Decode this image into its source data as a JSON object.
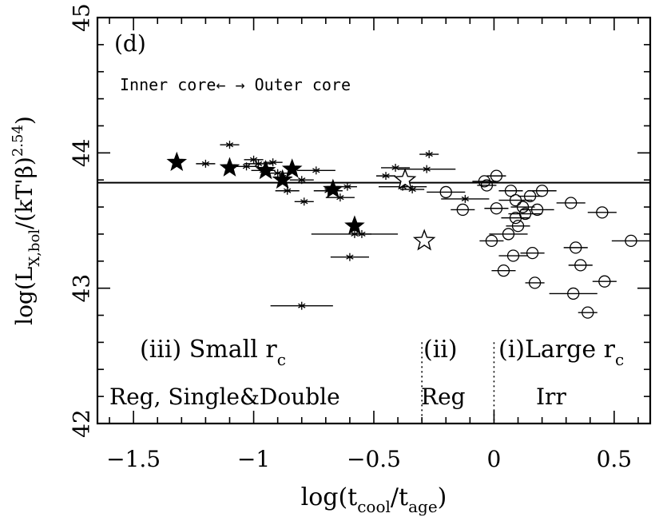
{
  "chart_data": {
    "type": "scatter",
    "panel_label": "(d)",
    "xlabel": "log(t_cool/t_age)",
    "xlabel_parts": {
      "pre": "log(t",
      "sub1": "cool",
      "mid": "/t",
      "sub2": "age",
      "post": ")"
    },
    "ylabel": "log(L_X,bol/(kT'β)^2.54)",
    "ylabel_parts": {
      "pre": "log(L",
      "sub": "X,bol",
      "mid": "/(kT'β)",
      "sup": "2.54",
      "post": ")"
    },
    "xlim": [
      -1.65,
      0.65
    ],
    "ylim": [
      42,
      45
    ],
    "xticks": [
      -1.5,
      -1,
      -0.5,
      0,
      0.5
    ],
    "xtick_labels": [
      "−1.5",
      "−1",
      "−0.5",
      "0",
      "0.5"
    ],
    "yticks": [
      42,
      43,
      44,
      45
    ],
    "ytick_labels": [
      "42",
      "43",
      "44",
      "45"
    ],
    "hline_y": 43.78,
    "vlines_x": [
      -0.3,
      0.0
    ],
    "annotation_core": "Inner core←  → Outer core",
    "regions": [
      {
        "label": "(iii) Small r",
        "sub": "c",
        "type": "Reg, Single&Double"
      },
      {
        "label": "(ii)",
        "sub": "",
        "type": "Reg"
      },
      {
        "label": "(i)Large r",
        "sub": "c",
        "type": "Irr"
      }
    ],
    "series": [
      {
        "name": "Small rc clusters (asterisk)",
        "marker": "asterisk",
        "points": [
          {
            "x": -1.2,
            "y": 43.92,
            "xerr": 0.04
          },
          {
            "x": -1.1,
            "y": 44.06,
            "xerr": 0.04
          },
          {
            "x": -1.03,
            "y": 43.9,
            "xerr": 0.05
          },
          {
            "x": -1.0,
            "y": 43.95,
            "xerr": 0.04
          },
          {
            "x": -0.98,
            "y": 43.92,
            "xerr": 0.06
          },
          {
            "x": -0.96,
            "y": 43.87,
            "xerr": 0.05
          },
          {
            "x": -0.92,
            "y": 43.93,
            "xerr": 0.04
          },
          {
            "x": -0.9,
            "y": 43.85,
            "xerr": 0.05
          },
          {
            "x": -0.88,
            "y": 43.82,
            "xerr": 0.04
          },
          {
            "x": -0.86,
            "y": 43.72,
            "xerr": 0.05
          },
          {
            "x": -0.8,
            "y": 43.8,
            "xerr": 0.05
          },
          {
            "x": -0.79,
            "y": 43.64,
            "xerr": 0.04
          },
          {
            "x": -0.74,
            "y": 43.87,
            "xerr": 0.08
          },
          {
            "x": -0.69,
            "y": 43.72,
            "xerr": 0.06
          },
          {
            "x": -0.64,
            "y": 43.67,
            "xerr": 0.06
          },
          {
            "x": -0.61,
            "y": 43.75,
            "xerr": 0.04
          },
          {
            "x": -0.58,
            "y": 43.4,
            "xerr": 0.18
          },
          {
            "x": -0.55,
            "y": 43.4,
            "xerr": 0.04
          },
          {
            "x": -0.6,
            "y": 43.23,
            "xerr": 0.08
          },
          {
            "x": -0.8,
            "y": 42.87,
            "xerr": 0.13
          },
          {
            "x": -0.45,
            "y": 43.83,
            "xerr": 0.04
          },
          {
            "x": -0.41,
            "y": 43.89,
            "xerr": 0.06
          },
          {
            "x": -0.38,
            "y": 43.75,
            "xerr": 0.1
          },
          {
            "x": -0.34,
            "y": 43.73,
            "xerr": 0.05
          },
          {
            "x": -0.28,
            "y": 43.88,
            "xerr": 0.12
          },
          {
            "x": -0.27,
            "y": 43.99,
            "xerr": 0.04
          },
          {
            "x": -0.12,
            "y": 43.66,
            "xerr": 0.1
          }
        ]
      },
      {
        "name": "Double clusters (filled star)",
        "marker": "star_filled",
        "points": [
          {
            "x": -1.32,
            "y": 43.93
          },
          {
            "x": -1.1,
            "y": 43.89
          },
          {
            "x": -0.95,
            "y": 43.87
          },
          {
            "x": -0.84,
            "y": 43.88
          },
          {
            "x": -0.88,
            "y": 43.8
          },
          {
            "x": -0.67,
            "y": 43.73
          },
          {
            "x": -0.58,
            "y": 43.46
          }
        ]
      },
      {
        "name": "Open star",
        "marker": "star_open",
        "points": [
          {
            "x": -0.37,
            "y": 43.8
          },
          {
            "x": -0.29,
            "y": 43.35
          }
        ]
      },
      {
        "name": "Large rc clusters (circle)",
        "marker": "circle",
        "points": [
          {
            "x": -0.04,
            "y": 43.79,
            "xerr": 0.05
          },
          {
            "x": 0.01,
            "y": 43.83,
            "xerr": 0.04
          },
          {
            "x": -0.03,
            "y": 43.76,
            "xerr": 0.04
          },
          {
            "x": -0.2,
            "y": 43.71,
            "xerr": 0.08
          },
          {
            "x": -0.13,
            "y": 43.58,
            "xerr": 0.05
          },
          {
            "x": 0.07,
            "y": 43.72,
            "xerr": 0.05
          },
          {
            "x": 0.09,
            "y": 43.65,
            "xerr": 0.07
          },
          {
            "x": 0.12,
            "y": 43.6,
            "xerr": 0.05
          },
          {
            "x": 0.15,
            "y": 43.68,
            "xerr": 0.05
          },
          {
            "x": 0.09,
            "y": 43.52,
            "xerr": 0.06
          },
          {
            "x": 0.13,
            "y": 43.55,
            "xerr": 0.07
          },
          {
            "x": 0.2,
            "y": 43.72,
            "xerr": 0.06
          },
          {
            "x": 0.18,
            "y": 43.58,
            "xerr": 0.07
          },
          {
            "x": 0.01,
            "y": 43.59,
            "xerr": 0.05
          },
          {
            "x": 0.06,
            "y": 43.4,
            "xerr": 0.08
          },
          {
            "x": 0.1,
            "y": 43.46,
            "xerr": 0.05
          },
          {
            "x": -0.01,
            "y": 43.35,
            "xerr": 0.05
          },
          {
            "x": 0.08,
            "y": 43.24,
            "xerr": 0.06
          },
          {
            "x": 0.16,
            "y": 43.26,
            "xerr": 0.05
          },
          {
            "x": 0.04,
            "y": 43.13,
            "xerr": 0.05
          },
          {
            "x": 0.17,
            "y": 43.04,
            "xerr": 0.04
          },
          {
            "x": 0.32,
            "y": 43.63,
            "xerr": 0.06
          },
          {
            "x": 0.45,
            "y": 43.56,
            "xerr": 0.06
          },
          {
            "x": 0.34,
            "y": 43.3,
            "xerr": 0.05
          },
          {
            "x": 0.36,
            "y": 43.17,
            "xerr": 0.05
          },
          {
            "x": 0.57,
            "y": 43.35,
            "xerr": 0.08
          },
          {
            "x": 0.33,
            "y": 42.96,
            "xerr": 0.1
          },
          {
            "x": 0.46,
            "y": 43.05,
            "xerr": 0.05
          },
          {
            "x": 0.39,
            "y": 42.82,
            "xerr": 0.04
          }
        ]
      }
    ]
  }
}
